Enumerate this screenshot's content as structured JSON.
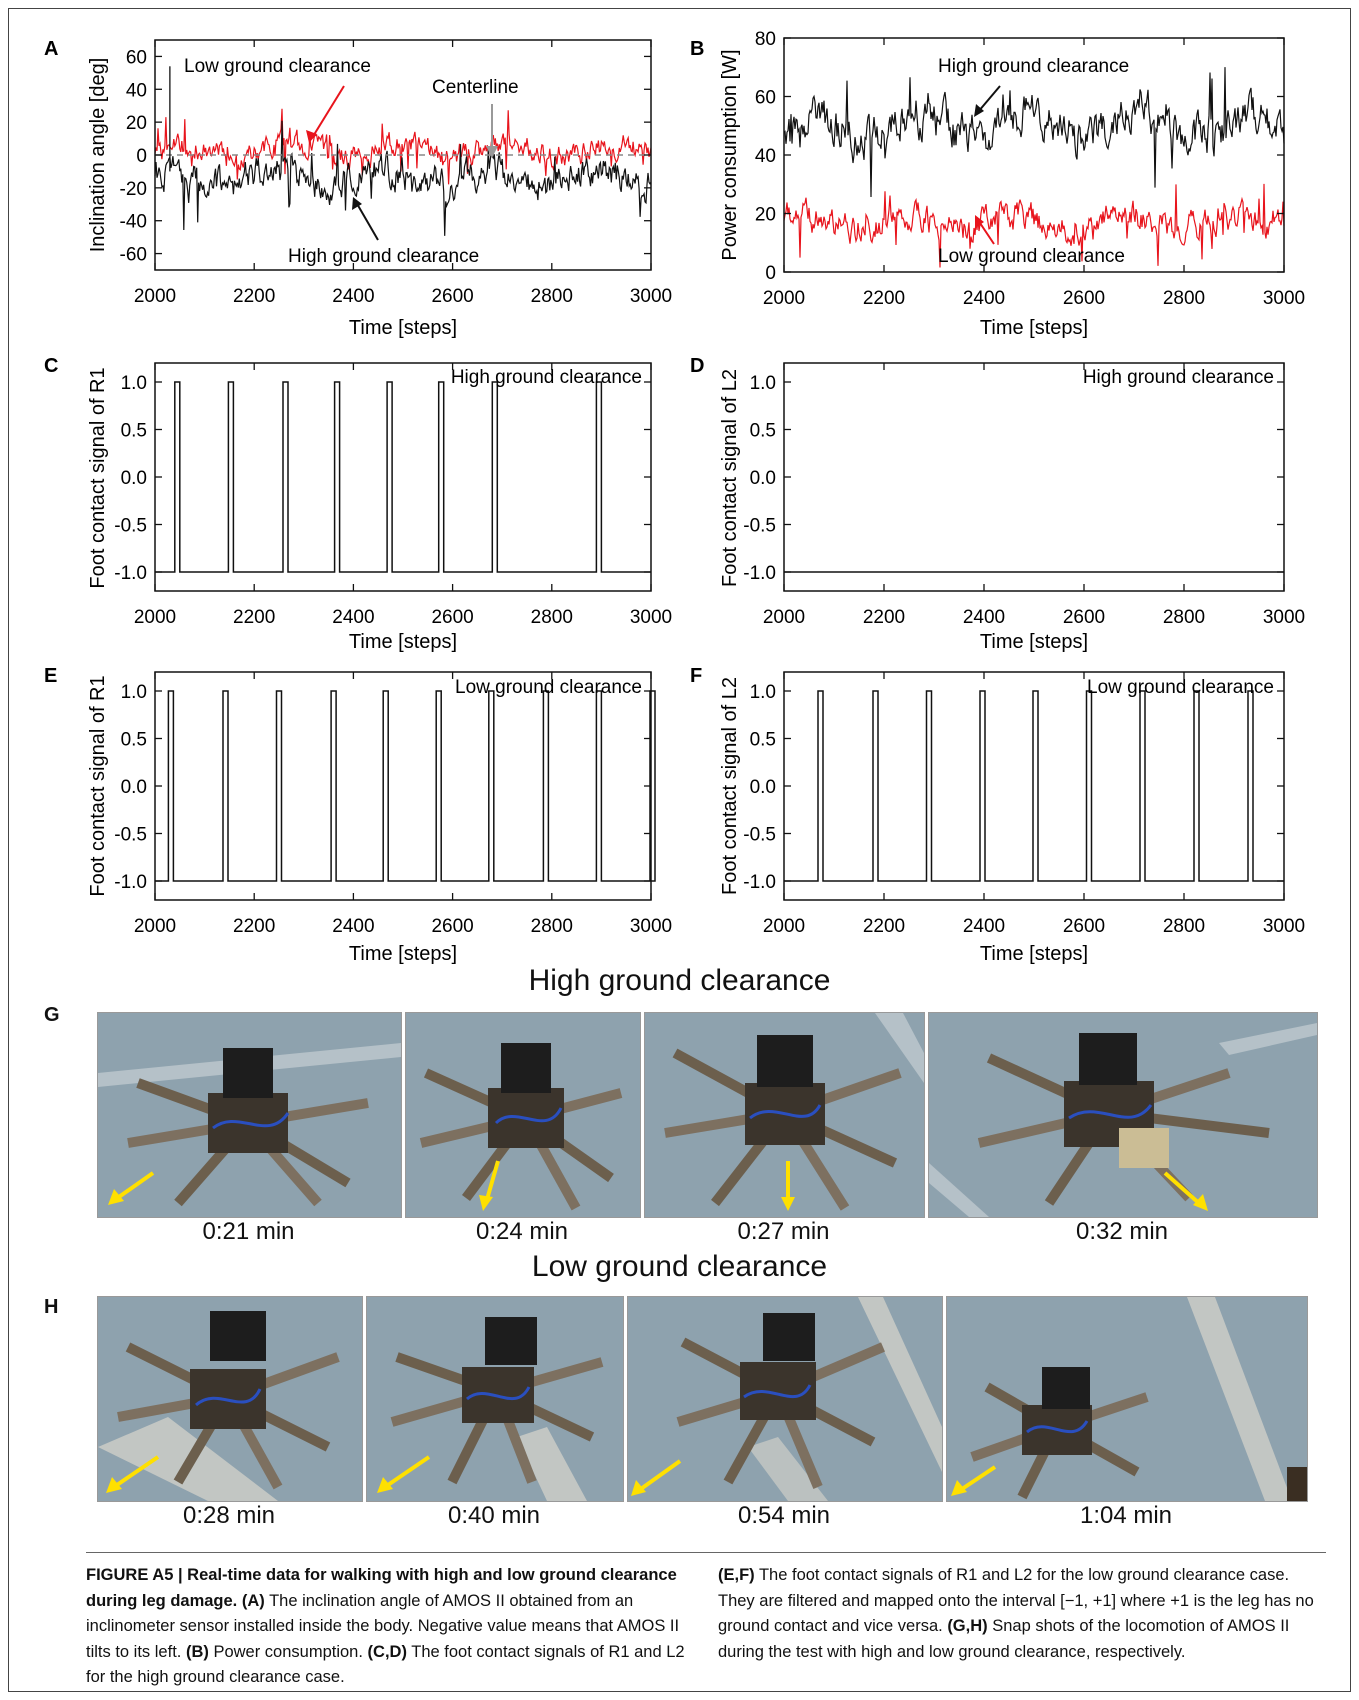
{
  "charts": {
    "A": {
      "letter": "A",
      "ylabel": "Inclination angle [deg]",
      "xlabel": "Time [steps]",
      "yticks": [
        "60",
        "40",
        "20",
        "0",
        "-20",
        "-40",
        "-60"
      ],
      "xticks": [
        "2000",
        "2200",
        "2400",
        "2600",
        "2800",
        "3000"
      ],
      "annotations": {
        "low": "Low ground clearance",
        "high": "High ground clearance",
        "center": "Centerline"
      }
    },
    "B": {
      "letter": "B",
      "ylabel": "Power consumption [W]",
      "xlabel": "Time [steps]",
      "yticks": [
        "80",
        "60",
        "40",
        "20",
        "0"
      ],
      "xticks": [
        "2000",
        "2200",
        "2400",
        "2600",
        "2800",
        "3000"
      ],
      "annotations": {
        "high": "High ground clearance",
        "low": "Low ground clearance"
      }
    },
    "C": {
      "letter": "C",
      "ylabel": "Foot contact signal of R1",
      "xlabel": "Time [steps]",
      "label": "High ground clearance",
      "yticks": [
        "1.0",
        "0.5",
        "0.0",
        "-0.5",
        "-1.0"
      ],
      "xticks": [
        "2000",
        "2200",
        "2400",
        "2600",
        "2800",
        "3000"
      ]
    },
    "D": {
      "letter": "D",
      "ylabel": "Foot contact signal of L2",
      "xlabel": "Time [steps]",
      "label": "High ground clearance",
      "yticks": [
        "1.0",
        "0.5",
        "0.0",
        "-0.5",
        "-1.0"
      ],
      "xticks": [
        "2000",
        "2200",
        "2400",
        "2600",
        "2800",
        "3000"
      ]
    },
    "E": {
      "letter": "E",
      "ylabel": "Foot contact signal of R1",
      "xlabel": "Time [steps]",
      "label": "Low ground clearance",
      "yticks": [
        "1.0",
        "0.5",
        "0.0",
        "-0.5",
        "-1.0"
      ],
      "xticks": [
        "2000",
        "2200",
        "2400",
        "2600",
        "2800",
        "3000"
      ]
    },
    "F": {
      "letter": "F",
      "ylabel": "Foot contact signal of L2",
      "xlabel": "Time [steps]",
      "label": "Low ground clearance",
      "yticks": [
        "1.0",
        "0.5",
        "0.0",
        "-0.5",
        "-1.0"
      ],
      "xticks": [
        "2000",
        "2200",
        "2400",
        "2600",
        "2800",
        "3000"
      ]
    }
  },
  "chart_data": [
    {
      "panel": "A",
      "type": "line",
      "xlim": [
        2000,
        3000
      ],
      "ylim": [
        -70,
        70
      ],
      "series": [
        {
          "name": "Low ground clearance",
          "color": "#e8141c",
          "mean": 3,
          "spread": 10
        },
        {
          "name": "High ground clearance",
          "color": "#111111",
          "mean": -14,
          "spread": 14
        }
      ]
    },
    {
      "panel": "B",
      "type": "line",
      "xlim": [
        2000,
        3000
      ],
      "ylim": [
        0,
        80
      ],
      "series": [
        {
          "name": "High ground clearance",
          "color": "#111111",
          "mean": 50,
          "spread": 10
        },
        {
          "name": "Low ground clearance",
          "color": "#e8141c",
          "mean": 17,
          "spread": 7
        }
      ]
    },
    {
      "panel": "C",
      "type": "line",
      "xlim": [
        2000,
        3000
      ],
      "ylim": [
        -1.2,
        1.2
      ],
      "baseline": -1.0,
      "peak": 1.0,
      "pulses": [
        2040,
        2148,
        2258,
        2362,
        2468,
        2572,
        2680,
        2890
      ]
    },
    {
      "panel": "D",
      "type": "line",
      "xlim": [
        2000,
        3000
      ],
      "ylim": [
        -1.2,
        1.2
      ],
      "baseline": -1.0,
      "peak": 1.0,
      "pulses": []
    },
    {
      "panel": "E",
      "type": "line",
      "xlim": [
        2000,
        3000
      ],
      "ylim": [
        -1.2,
        1.2
      ],
      "baseline": -1.0,
      "peak": 1.0,
      "pulses": [
        2027,
        2137,
        2245,
        2355,
        2460,
        2567,
        2673,
        2783,
        2890,
        2998
      ]
    },
    {
      "panel": "F",
      "type": "line",
      "xlim": [
        2000,
        3000
      ],
      "ylim": [
        -1.2,
        1.2
      ],
      "baseline": -1.0,
      "peak": 1.0,
      "pulses": [
        2068,
        2178,
        2285,
        2392,
        2498,
        2605,
        2712,
        2820,
        2928
      ]
    }
  ],
  "photos": {
    "G": {
      "letter": "G",
      "title": "High ground clearance",
      "times": [
        "0:21 min",
        "0:24 min",
        "0:27 min",
        "0:32 min"
      ]
    },
    "H": {
      "letter": "H",
      "title": "Low ground clearance",
      "times": [
        "0:28 min",
        "0:40 min",
        "0:54 min",
        "1:04 min"
      ]
    }
  },
  "caption": {
    "heading": "FIGURE A5 | Real-time data for walking with high and low ground clearance during leg damage.",
    "a_tag": "(A)",
    "a_text": "The inclination angle of AMOS II obtained from an inclinometer sensor installed inside the body. Negative value means that AMOS II tilts to its left.",
    "b_tag": "(B)",
    "b_text": "Power consumption.",
    "cd_tag": "(C,D)",
    "cd_text": "The foot contact signals of R1 and L2 for the high ground clearance case.",
    "ef_tag": "(E,F)",
    "ef_text": "The foot contact signals of R1 and L2 for the low ground clearance case. They are filtered and mapped onto the interval [−1, +1] where +1 is the leg has no ground contact and vice versa.",
    "gh_tag": "(G,H)",
    "gh_text": "Snap shots of the locomotion of AMOS II during the test with high and low ground clearance, respectively."
  },
  "colors": {
    "red": "#e8141c",
    "black": "#111111",
    "yellow": "#ffe000",
    "floor": "#7f97a6"
  }
}
